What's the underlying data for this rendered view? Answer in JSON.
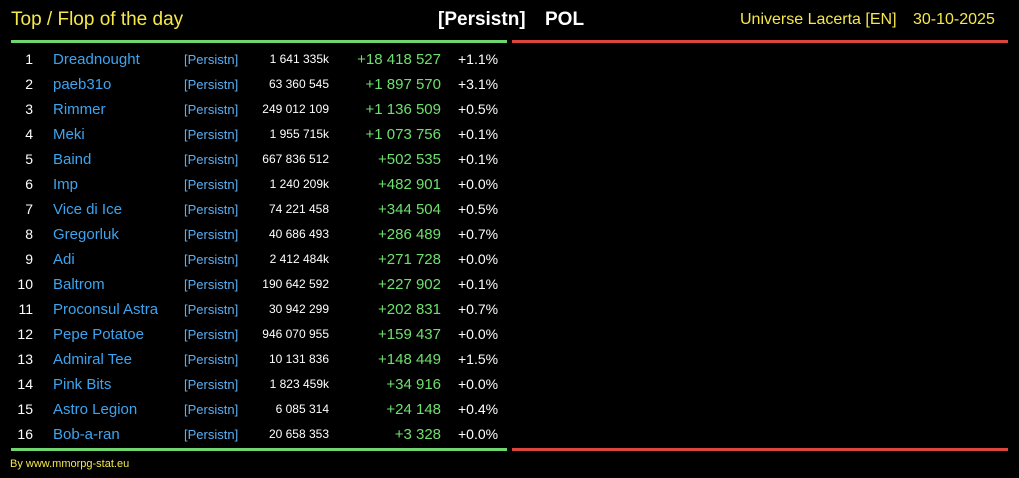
{
  "header": {
    "title": "Top / Flop of the day",
    "alliance": "[Persistn]",
    "tag": "POL",
    "universe": "Universe Lacerta [EN]",
    "date": "30-10-2025"
  },
  "colors": {
    "accent_yellow": "#f5e84a",
    "player_blue": "#3da4f0",
    "gain_green": "#6fe06f",
    "top_line_green": "#6fd66f",
    "flop_line_red": "#d9463e"
  },
  "rows": [
    {
      "rank": "1",
      "player": "Dreadnought",
      "tag": "[Persistn]",
      "score": "1 641 335k",
      "delta": "+18 418 527",
      "pct": "+1.1%"
    },
    {
      "rank": "2",
      "player": "paeb31o",
      "tag": "[Persistn]",
      "score": "63 360 545",
      "delta": "+1 897 570",
      "pct": "+3.1%"
    },
    {
      "rank": "3",
      "player": "Rimmer",
      "tag": "[Persistn]",
      "score": "249 012 109",
      "delta": "+1 136 509",
      "pct": "+0.5%"
    },
    {
      "rank": "4",
      "player": "Meki",
      "tag": "[Persistn]",
      "score": "1 955 715k",
      "delta": "+1 073 756",
      "pct": "+0.1%"
    },
    {
      "rank": "5",
      "player": "Baind",
      "tag": "[Persistn]",
      "score": "667 836 512",
      "delta": "+502 535",
      "pct": "+0.1%"
    },
    {
      "rank": "6",
      "player": "Imp",
      "tag": "[Persistn]",
      "score": "1 240 209k",
      "delta": "+482 901",
      "pct": "+0.0%"
    },
    {
      "rank": "7",
      "player": "Vice di Ice",
      "tag": "[Persistn]",
      "score": "74 221 458",
      "delta": "+344 504",
      "pct": "+0.5%"
    },
    {
      "rank": "8",
      "player": "Gregorluk",
      "tag": "[Persistn]",
      "score": "40 686 493",
      "delta": "+286 489",
      "pct": "+0.7%"
    },
    {
      "rank": "9",
      "player": "Adi",
      "tag": "[Persistn]",
      "score": "2 412 484k",
      "delta": "+271 728",
      "pct": "+0.0%"
    },
    {
      "rank": "10",
      "player": "Baltrom",
      "tag": "[Persistn]",
      "score": "190 642 592",
      "delta": "+227 902",
      "pct": "+0.1%"
    },
    {
      "rank": "11",
      "player": "Proconsul Astra",
      "tag": "[Persistn]",
      "score": "30 942 299",
      "delta": "+202 831",
      "pct": "+0.7%"
    },
    {
      "rank": "12",
      "player": "Pepe Potatoe",
      "tag": "[Persistn]",
      "score": "946 070 955",
      "delta": "+159 437",
      "pct": "+0.0%"
    },
    {
      "rank": "13",
      "player": "Admiral Tee",
      "tag": "[Persistn]",
      "score": "10 131 836",
      "delta": "+148 449",
      "pct": "+1.5%"
    },
    {
      "rank": "14",
      "player": "Pink Bits",
      "tag": "[Persistn]",
      "score": "1 823 459k",
      "delta": "+34 916",
      "pct": "+0.0%"
    },
    {
      "rank": "15",
      "player": "Astro Legion",
      "tag": "[Persistn]",
      "score": "6 085 314",
      "delta": "+24 148",
      "pct": "+0.4%"
    },
    {
      "rank": "16",
      "player": "Bob-a-ran",
      "tag": "[Persistn]",
      "score": "20 658 353",
      "delta": "+3 328",
      "pct": "+0.0%"
    }
  ],
  "footer": {
    "credit": "By www.mmorpg-stat.eu"
  }
}
